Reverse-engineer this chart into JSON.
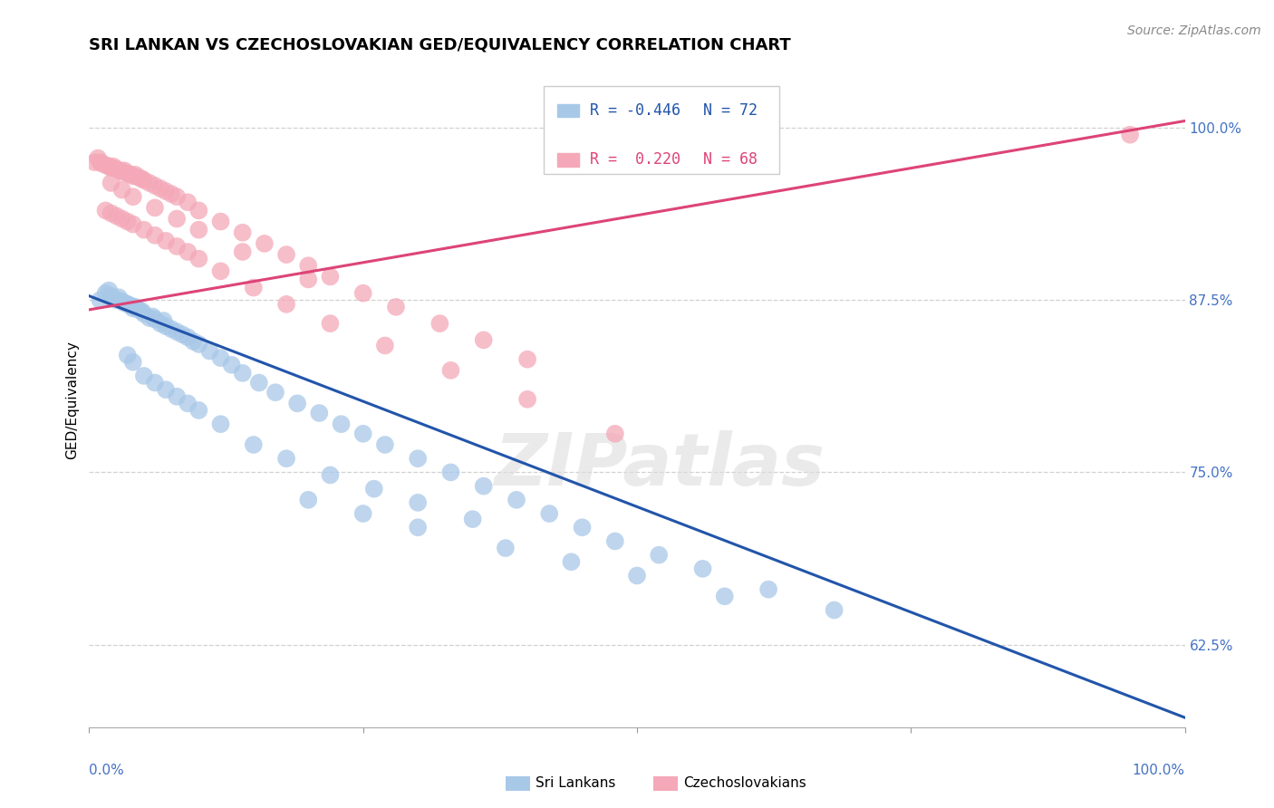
{
  "title": "SRI LANKAN VS CZECHOSLOVAKIAN GED/EQUIVALENCY CORRELATION CHART",
  "source": "Source: ZipAtlas.com",
  "ylabel": "GED/Equivalency",
  "xlim": [
    0.0,
    1.0
  ],
  "ylim": [
    0.565,
    1.04
  ],
  "yticks": [
    0.625,
    0.75,
    0.875,
    1.0
  ],
  "ytick_labels": [
    "62.5%",
    "75.0%",
    "87.5%",
    "100.0%"
  ],
  "sri_lanka_color": "#A8C8E8",
  "czech_color": "#F4A8B8",
  "sri_lanka_line_color": "#2255AA",
  "czech_line_color": "#DD4477",
  "watermark": "ZIPatlas",
  "blue_line_x0": 0.0,
  "blue_line_y0": 0.878,
  "blue_line_x1": 1.0,
  "blue_line_y1": 0.572,
  "pink_line_x0": 0.0,
  "pink_line_y0": 0.868,
  "pink_line_x1": 1.0,
  "pink_line_y1": 1.005,
  "background_color": "#FFFFFF",
  "grid_color": "#CCCCCC",
  "title_fontsize": 13,
  "label_fontsize": 11,
  "tick_fontsize": 11,
  "legend_fontsize": 12,
  "source_fontsize": 10,
  "sri_lanka_x": [
    0.01,
    0.015,
    0.018,
    0.02,
    0.022,
    0.025,
    0.027,
    0.03,
    0.032,
    0.035,
    0.038,
    0.04,
    0.042,
    0.045,
    0.048,
    0.05,
    0.055,
    0.058,
    0.06,
    0.065,
    0.068,
    0.07,
    0.075,
    0.08,
    0.085,
    0.09,
    0.095,
    0.1,
    0.11,
    0.12,
    0.13,
    0.14,
    0.155,
    0.17,
    0.19,
    0.21,
    0.23,
    0.25,
    0.27,
    0.3,
    0.33,
    0.36,
    0.39,
    0.42,
    0.45,
    0.48,
    0.52,
    0.56,
    0.62,
    0.68,
    0.035,
    0.04,
    0.05,
    0.06,
    0.07,
    0.08,
    0.09,
    0.1,
    0.12,
    0.15,
    0.18,
    0.22,
    0.26,
    0.3,
    0.35,
    0.2,
    0.25,
    0.3,
    0.38,
    0.44,
    0.5,
    0.58
  ],
  "sri_lanka_y": [
    0.875,
    0.88,
    0.882,
    0.878,
    0.876,
    0.875,
    0.877,
    0.874,
    0.873,
    0.872,
    0.871,
    0.869,
    0.87,
    0.868,
    0.867,
    0.865,
    0.862,
    0.863,
    0.861,
    0.858,
    0.86,
    0.856,
    0.854,
    0.852,
    0.85,
    0.848,
    0.845,
    0.843,
    0.838,
    0.833,
    0.828,
    0.822,
    0.815,
    0.808,
    0.8,
    0.793,
    0.785,
    0.778,
    0.77,
    0.76,
    0.75,
    0.74,
    0.73,
    0.72,
    0.71,
    0.7,
    0.69,
    0.68,
    0.665,
    0.65,
    0.835,
    0.83,
    0.82,
    0.815,
    0.81,
    0.805,
    0.8,
    0.795,
    0.785,
    0.77,
    0.76,
    0.748,
    0.738,
    0.728,
    0.716,
    0.73,
    0.72,
    0.71,
    0.695,
    0.685,
    0.675,
    0.66
  ],
  "czech_x": [
    0.005,
    0.008,
    0.01,
    0.012,
    0.015,
    0.018,
    0.02,
    0.022,
    0.025,
    0.028,
    0.03,
    0.032,
    0.035,
    0.038,
    0.04,
    0.042,
    0.045,
    0.048,
    0.05,
    0.055,
    0.06,
    0.065,
    0.07,
    0.075,
    0.08,
    0.09,
    0.1,
    0.12,
    0.14,
    0.16,
    0.18,
    0.2,
    0.22,
    0.25,
    0.28,
    0.32,
    0.36,
    0.4,
    0.015,
    0.02,
    0.025,
    0.03,
    0.035,
    0.04,
    0.05,
    0.06,
    0.07,
    0.08,
    0.09,
    0.1,
    0.12,
    0.15,
    0.18,
    0.22,
    0.27,
    0.33,
    0.4,
    0.48,
    0.95,
    0.02,
    0.03,
    0.04,
    0.06,
    0.08,
    0.1,
    0.14,
    0.2
  ],
  "czech_y": [
    0.975,
    0.978,
    0.975,
    0.974,
    0.973,
    0.972,
    0.971,
    0.972,
    0.97,
    0.969,
    0.968,
    0.969,
    0.967,
    0.966,
    0.965,
    0.966,
    0.964,
    0.963,
    0.962,
    0.96,
    0.958,
    0.956,
    0.954,
    0.952,
    0.95,
    0.946,
    0.94,
    0.932,
    0.924,
    0.916,
    0.908,
    0.9,
    0.892,
    0.88,
    0.87,
    0.858,
    0.846,
    0.832,
    0.94,
    0.938,
    0.936,
    0.934,
    0.932,
    0.93,
    0.926,
    0.922,
    0.918,
    0.914,
    0.91,
    0.905,
    0.896,
    0.884,
    0.872,
    0.858,
    0.842,
    0.824,
    0.803,
    0.778,
    0.995,
    0.96,
    0.955,
    0.95,
    0.942,
    0.934,
    0.926,
    0.91,
    0.89
  ]
}
